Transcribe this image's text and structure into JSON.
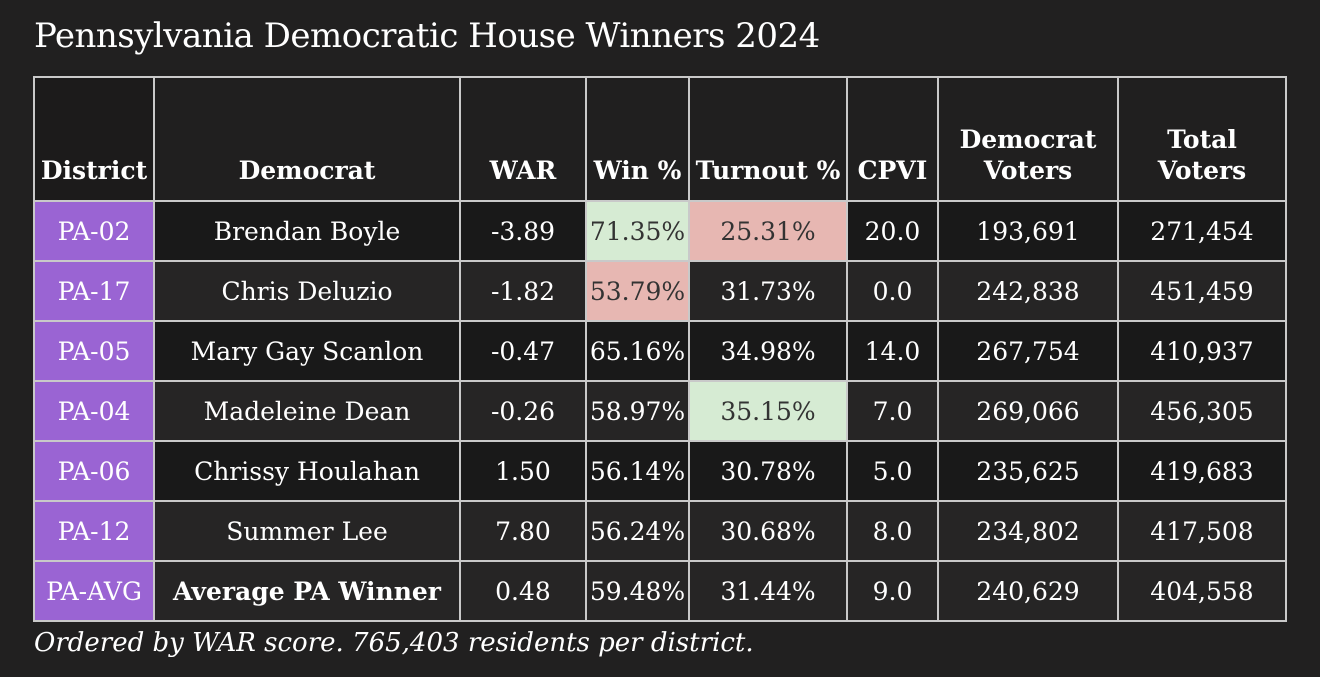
{
  "title": "Pennsylvania Democratic House Winners 2024",
  "footnote": "Ordered by WAR score. 765,403 residents per district.",
  "colors": {
    "background": "#212020",
    "district_cell": "#9a64d3",
    "highlight_high": "#d6ebd3",
    "highlight_low": "#e7b7b2"
  },
  "table": {
    "headers": {
      "district": "District",
      "democrat": "Democrat",
      "war": "WAR",
      "win_pct": "Win %",
      "turnout_pct": "Turnout %",
      "cpvi": "CPVI",
      "democrat_voters_line1": "Democrat",
      "democrat_voters_line2": "Voters",
      "total_voters_line1": "Total",
      "total_voters_line2": "Voters"
    },
    "rows": [
      {
        "district": "PA-02",
        "democrat": "Brendan Boyle",
        "war": "-3.89",
        "win_pct": "71.35%",
        "turnout_pct": "25.31%",
        "cpvi": "20.0",
        "democrat_voters": "193,691",
        "total_voters": "271,454"
      },
      {
        "district": "PA-17",
        "democrat": "Chris Deluzio",
        "war": "-1.82",
        "win_pct": "53.79%",
        "turnout_pct": "31.73%",
        "cpvi": "0.0",
        "democrat_voters": "242,838",
        "total_voters": "451,459"
      },
      {
        "district": "PA-05",
        "democrat": "Mary Gay Scanlon",
        "war": "-0.47",
        "win_pct": "65.16%",
        "turnout_pct": "34.98%",
        "cpvi": "14.0",
        "democrat_voters": "267,754",
        "total_voters": "410,937"
      },
      {
        "district": "PA-04",
        "democrat": "Madeleine Dean",
        "war": "-0.26",
        "win_pct": "58.97%",
        "turnout_pct": "35.15%",
        "cpvi": "7.0",
        "democrat_voters": "269,066",
        "total_voters": "456,305"
      },
      {
        "district": "PA-06",
        "democrat": "Chrissy Houlahan",
        "war": "1.50",
        "win_pct": "56.14%",
        "turnout_pct": "30.78%",
        "cpvi": "5.0",
        "democrat_voters": "235,625",
        "total_voters": "419,683"
      },
      {
        "district": "PA-12",
        "democrat": "Summer Lee",
        "war": "7.80",
        "win_pct": "56.24%",
        "turnout_pct": "30.68%",
        "cpvi": "8.0",
        "democrat_voters": "234,802",
        "total_voters": "417,508"
      },
      {
        "district": "PA-AVG",
        "democrat": "Average PA Winner",
        "war": "0.48",
        "win_pct": "59.48%",
        "turnout_pct": "31.44%",
        "cpvi": "9.0",
        "democrat_voters": "240,629",
        "total_voters": "404,558"
      }
    ]
  }
}
